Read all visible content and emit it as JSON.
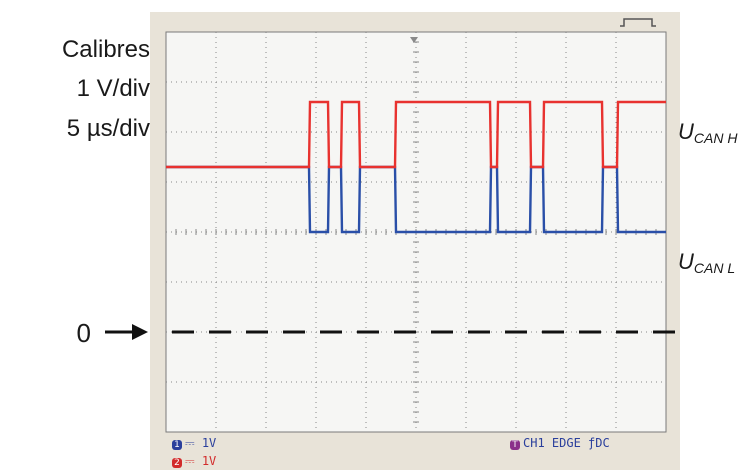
{
  "annotations": {
    "calibres_title": "Calibres",
    "volts_per_div": "1 V/div",
    "time_per_div": "5 µs/div",
    "zero_label": "0",
    "canh_label": {
      "main": "U",
      "sub": "CAN H"
    },
    "canl_label": {
      "main": "U",
      "sub": "CAN L"
    }
  },
  "osd": {
    "ch1_badge": "1",
    "ch1_scale": "1V",
    "ch2_badge": "2",
    "ch2_scale": "1V",
    "trigger_badge": "T",
    "trigger_text": "CH1  EDGE ƒDC"
  },
  "colors": {
    "screen_bg": "#f6f6f4",
    "bezel": "#e8e3d8",
    "grid": "#888888",
    "canh": "#e8322f",
    "canl": "#2a4fa8",
    "osd_blue": "#2a3f9c",
    "osd_red": "#d22b2b",
    "osd_purple": "#8a2f8a"
  },
  "chart_data": {
    "type": "line",
    "title": "",
    "xlabel": "",
    "ylabel": "",
    "x_unit": "µs",
    "y_unit": "V",
    "x_divisions": 10,
    "y_divisions": 8,
    "xlim": [
      0,
      50
    ],
    "ylim": [
      -4,
      4
    ],
    "grid": true,
    "series": [
      {
        "name": "UCAN H",
        "points": [
          [
            0,
            1.3
          ],
          [
            14.3,
            1.3
          ],
          [
            14.4,
            2.6
          ],
          [
            16.2,
            2.6
          ],
          [
            16.3,
            1.3
          ],
          [
            17.5,
            1.3
          ],
          [
            17.6,
            2.6
          ],
          [
            19.3,
            2.6
          ],
          [
            19.4,
            1.3
          ],
          [
            22.9,
            1.3
          ],
          [
            23.0,
            2.6
          ],
          [
            32.4,
            2.6
          ],
          [
            32.5,
            1.3
          ],
          [
            33.1,
            1.3
          ],
          [
            33.2,
            2.6
          ],
          [
            36.4,
            2.6
          ],
          [
            36.5,
            1.3
          ],
          [
            37.7,
            1.3
          ],
          [
            37.8,
            2.6
          ],
          [
            43.6,
            2.6
          ],
          [
            43.7,
            1.3
          ],
          [
            45.1,
            1.3
          ],
          [
            45.2,
            2.6
          ],
          [
            50,
            2.6
          ]
        ]
      },
      {
        "name": "UCAN L",
        "points": [
          [
            0,
            1.3
          ],
          [
            14.3,
            1.3
          ],
          [
            14.4,
            0.0
          ],
          [
            16.2,
            0.0
          ],
          [
            16.3,
            1.3
          ],
          [
            17.5,
            1.3
          ],
          [
            17.6,
            0.0
          ],
          [
            19.3,
            0.0
          ],
          [
            19.4,
            1.3
          ],
          [
            22.9,
            1.3
          ],
          [
            23.0,
            0.0
          ],
          [
            32.4,
            0.0
          ],
          [
            32.5,
            1.3
          ],
          [
            33.1,
            1.3
          ],
          [
            33.2,
            0.0
          ],
          [
            36.4,
            0.0
          ],
          [
            36.5,
            1.3
          ],
          [
            37.7,
            1.3
          ],
          [
            37.8,
            0.0
          ],
          [
            43.6,
            0.0
          ],
          [
            43.7,
            1.3
          ],
          [
            45.1,
            1.3
          ],
          [
            45.2,
            0.0
          ],
          [
            50,
            0.0
          ]
        ]
      }
    ],
    "zero_reference_level": -2.0
  }
}
